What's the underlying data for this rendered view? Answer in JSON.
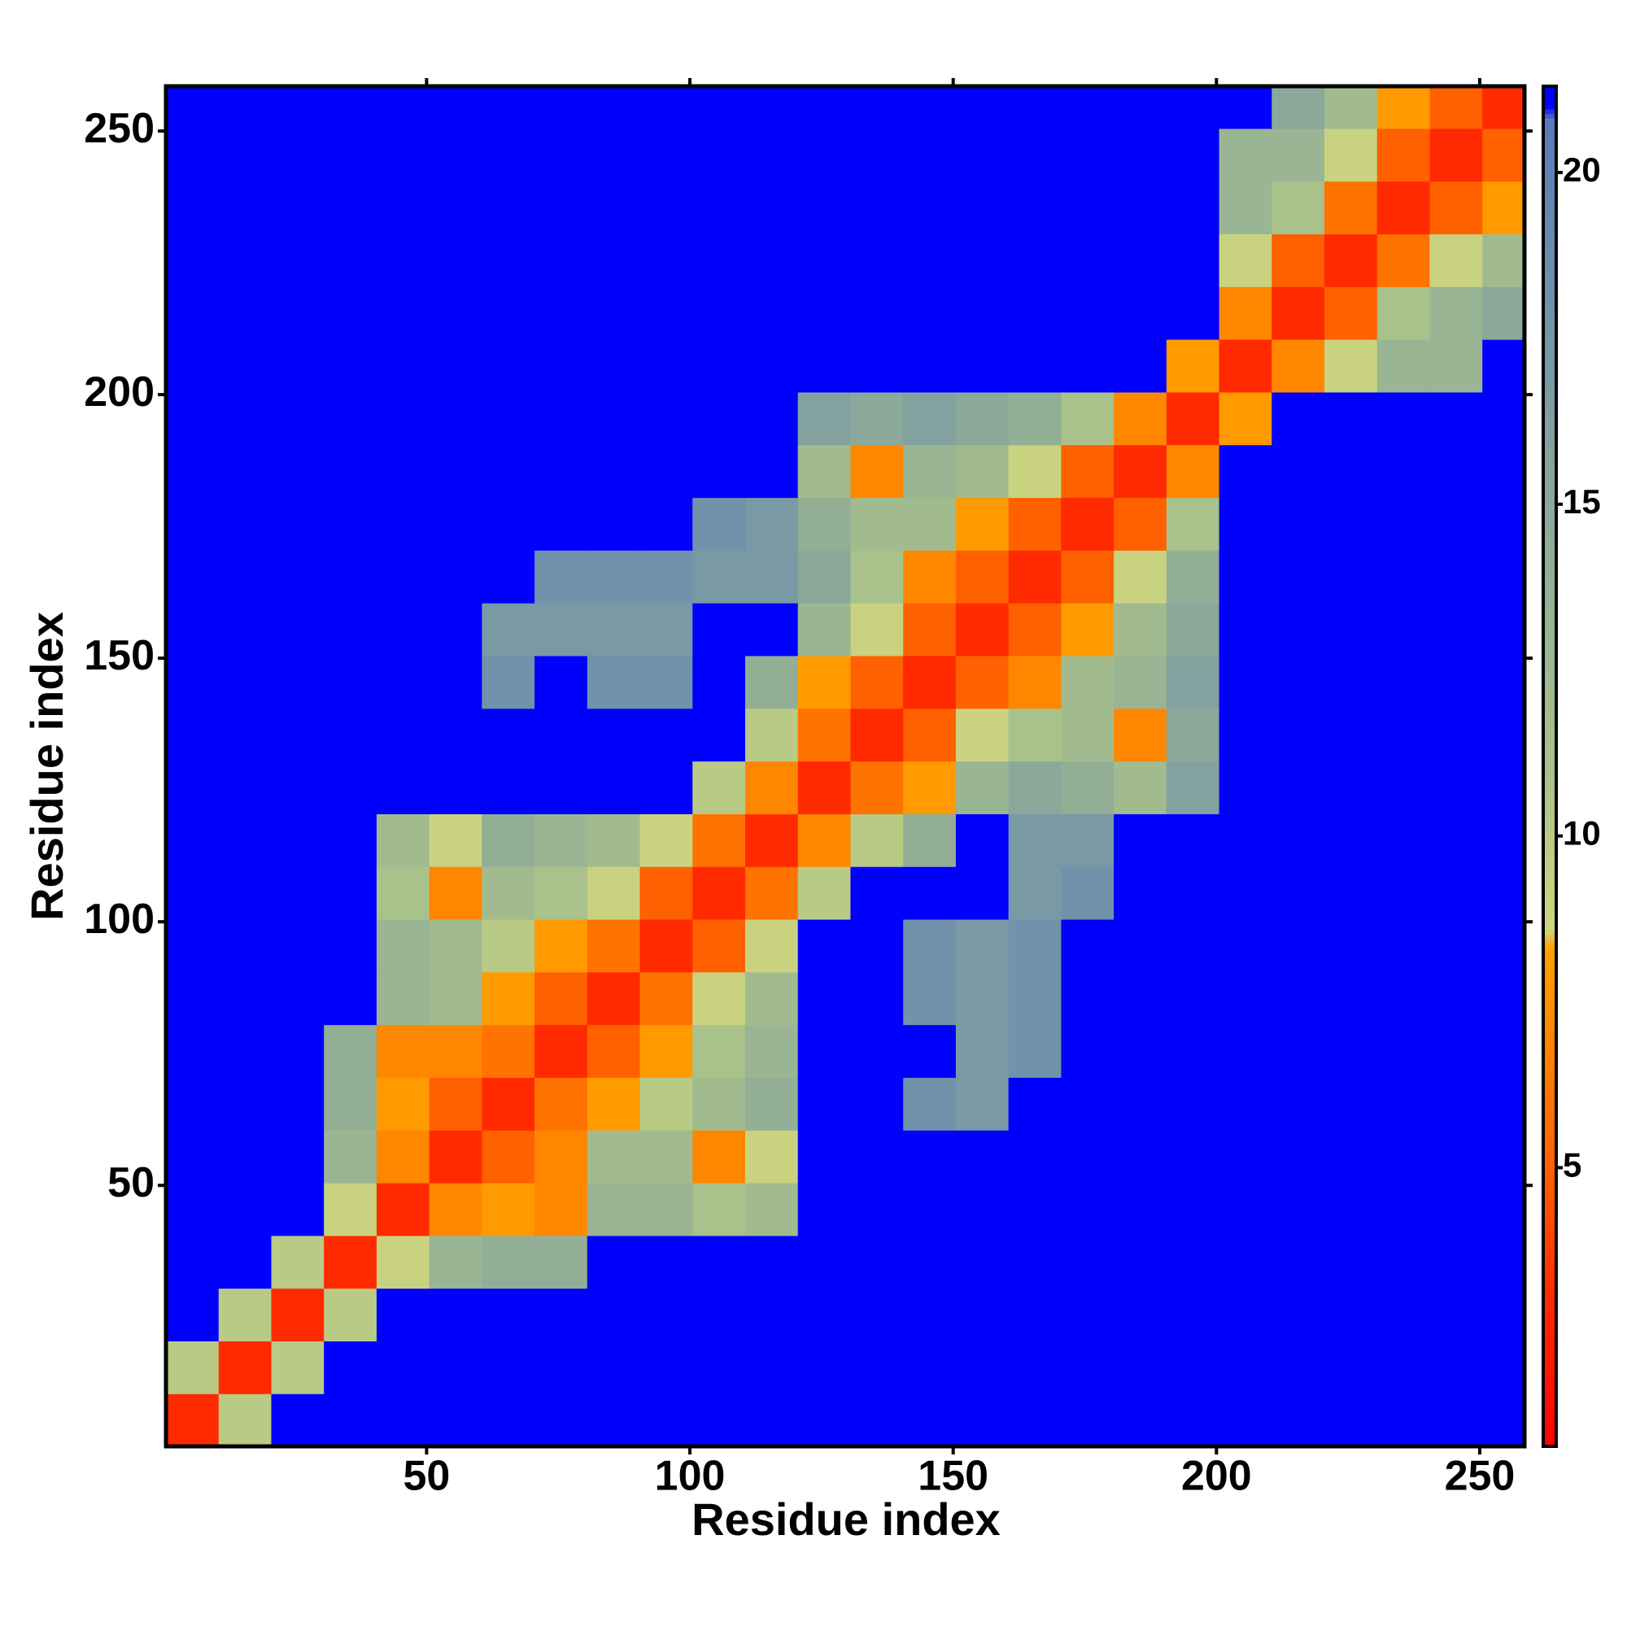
{
  "chart_data": {
    "type": "heatmap",
    "xlabel": "Residue index",
    "ylabel": "Residue index",
    "xlim": [
      0.5,
      258.5
    ],
    "ylim": [
      0.5,
      258.5
    ],
    "xticks": [
      50,
      100,
      150,
      200,
      250
    ],
    "yticks": [
      50,
      100,
      150,
      200,
      250
    ],
    "xbins": [
      0.5,
      10.5,
      20.5,
      30.5,
      40.5,
      50.5,
      60.5,
      70.5,
      80.5,
      90.5,
      100.5,
      110.5,
      120.5,
      130.5,
      140.5,
      150.5,
      160.5,
      170.5,
      180.5,
      190.5,
      200.5,
      210.5,
      220.5,
      230.5,
      240.5,
      250.5,
      258.5
    ],
    "ybins": [
      0.5,
      10.5,
      20.5,
      30.5,
      40.5,
      50.5,
      60.5,
      70.5,
      80.5,
      90.5,
      100.5,
      110.5,
      120.5,
      130.5,
      140.5,
      150.5,
      160.5,
      170.5,
      180.5,
      190.5,
      200.5,
      210.5,
      220.5,
      230.5,
      240.5,
      250.5,
      258.5
    ],
    "clim": [
      0.8,
      21.3
    ],
    "cticks": [
      5,
      10,
      15,
      20
    ],
    "colorscale": [
      [
        0.8,
        "#ff0000"
      ],
      [
        3,
        "#ff2a00"
      ],
      [
        5,
        "#ff6000"
      ],
      [
        8.3,
        "#ffa000"
      ],
      [
        8.6,
        "#cfd67c"
      ],
      [
        11,
        "#a9c18b"
      ],
      [
        15,
        "#8aa99a"
      ],
      [
        20.8,
        "#5a7cb8"
      ],
      [
        21,
        "#0000ff"
      ],
      [
        21.3,
        "#0000ff"
      ]
    ],
    "z": [
      [
        3,
        10,
        21,
        21,
        21,
        21,
        21,
        21,
        21,
        21,
        21,
        21,
        21,
        21,
        21,
        21,
        21,
        21,
        21,
        21,
        21,
        21,
        21,
        21,
        21,
        21
      ],
      [
        10,
        3,
        10,
        21,
        21,
        21,
        21,
        21,
        21,
        21,
        21,
        21,
        21,
        21,
        21,
        21,
        21,
        21,
        21,
        21,
        21,
        21,
        21,
        21,
        21,
        21
      ],
      [
        21,
        10,
        3,
        10,
        21,
        21,
        21,
        21,
        21,
        21,
        21,
        21,
        21,
        21,
        21,
        21,
        21,
        21,
        21,
        21,
        21,
        21,
        21,
        21,
        21,
        21
      ],
      [
        21,
        21,
        10,
        3,
        9,
        13,
        14,
        14,
        21,
        21,
        21,
        21,
        21,
        21,
        21,
        21,
        21,
        21,
        21,
        21,
        21,
        21,
        21,
        21,
        21,
        21
      ],
      [
        21,
        21,
        21,
        9,
        3,
        7,
        8,
        7,
        13,
        13,
        11,
        12,
        21,
        21,
        21,
        21,
        21,
        21,
        21,
        21,
        21,
        21,
        21,
        21,
        21,
        21
      ],
      [
        21,
        21,
        21,
        13,
        7,
        3,
        5,
        7,
        12,
        12,
        7,
        9,
        21,
        21,
        21,
        21,
        21,
        21,
        21,
        21,
        21,
        21,
        21,
        21,
        21,
        21
      ],
      [
        21,
        21,
        21,
        14,
        8,
        5,
        3,
        6,
        8,
        10,
        12,
        14,
        21,
        21,
        18,
        17,
        21,
        21,
        21,
        21,
        21,
        21,
        21,
        21,
        21,
        21
      ],
      [
        21,
        21,
        21,
        14,
        7,
        7,
        6,
        3,
        5,
        8,
        11,
        13,
        21,
        21,
        21,
        17,
        18,
        21,
        21,
        21,
        21,
        21,
        21,
        21,
        21,
        21
      ],
      [
        21,
        21,
        21,
        21,
        13,
        12,
        8,
        5,
        3,
        6,
        9,
        12,
        21,
        21,
        18,
        17,
        18,
        21,
        21,
        21,
        21,
        21,
        21,
        21,
        21,
        21
      ],
      [
        21,
        21,
        21,
        21,
        13,
        12,
        10,
        8,
        6,
        3,
        5,
        9,
        21,
        21,
        18,
        17,
        18,
        21,
        21,
        21,
        21,
        21,
        21,
        21,
        21,
        21
      ],
      [
        21,
        21,
        21,
        21,
        11,
        7,
        12,
        11,
        9,
        5,
        3,
        6,
        10,
        21,
        21,
        21,
        17,
        18,
        21,
        21,
        21,
        21,
        21,
        21,
        21,
        21
      ],
      [
        21,
        21,
        21,
        21,
        12,
        9,
        14,
        13,
        12,
        9,
        6,
        3,
        7,
        10,
        14,
        21,
        17,
        17,
        21,
        21,
        21,
        21,
        21,
        21,
        21,
        21
      ],
      [
        21,
        21,
        21,
        21,
        21,
        21,
        21,
        21,
        21,
        21,
        10,
        7,
        3,
        6,
        8,
        13,
        15,
        14,
        12,
        16,
        21,
        21,
        21,
        21,
        21,
        21
      ],
      [
        21,
        21,
        21,
        21,
        21,
        21,
        21,
        21,
        21,
        21,
        21,
        10,
        6,
        3,
        5,
        9,
        11,
        12,
        7,
        15,
        21,
        21,
        21,
        21,
        21,
        21
      ],
      [
        21,
        21,
        21,
        21,
        21,
        21,
        18,
        21,
        18,
        18,
        21,
        14,
        8,
        5,
        3,
        5,
        7,
        12,
        13,
        16,
        21,
        21,
        21,
        21,
        21,
        21
      ],
      [
        21,
        21,
        21,
        21,
        21,
        21,
        17,
        17,
        17,
        17,
        21,
        21,
        13,
        9,
        5,
        3,
        5,
        8,
        12,
        15,
        21,
        21,
        21,
        21,
        21,
        21
      ],
      [
        21,
        21,
        21,
        21,
        21,
        21,
        21,
        18,
        18,
        18,
        17,
        17,
        15,
        11,
        7,
        5,
        3,
        5,
        9,
        14,
        21,
        21,
        21,
        21,
        21,
        21
      ],
      [
        21,
        21,
        21,
        21,
        21,
        21,
        21,
        21,
        21,
        21,
        18,
        17,
        14,
        12,
        12,
        8,
        5,
        3,
        5,
        11,
        21,
        21,
        21,
        21,
        21,
        21
      ],
      [
        21,
        21,
        21,
        21,
        21,
        21,
        21,
        21,
        21,
        21,
        21,
        21,
        12,
        7,
        13,
        12,
        9,
        5,
        3,
        7,
        21,
        21,
        21,
        21,
        21,
        21
      ],
      [
        21,
        21,
        21,
        21,
        21,
        21,
        21,
        21,
        21,
        21,
        21,
        21,
        16,
        15,
        16,
        15,
        14,
        11,
        7,
        3,
        8,
        21,
        21,
        21,
        21,
        21
      ],
      [
        21,
        21,
        21,
        21,
        21,
        21,
        21,
        21,
        21,
        21,
        21,
        21,
        21,
        21,
        21,
        21,
        21,
        21,
        21,
        8,
        3,
        7,
        9,
        13,
        13,
        21
      ],
      [
        21,
        21,
        21,
        21,
        21,
        21,
        21,
        21,
        21,
        21,
        21,
        21,
        21,
        21,
        21,
        21,
        21,
        21,
        21,
        21,
        7,
        3,
        5,
        11,
        13,
        15
      ],
      [
        21,
        21,
        21,
        21,
        21,
        21,
        21,
        21,
        21,
        21,
        21,
        21,
        21,
        21,
        21,
        21,
        21,
        21,
        21,
        21,
        9,
        5,
        3,
        6,
        9,
        12
      ],
      [
        21,
        21,
        21,
        21,
        21,
        21,
        21,
        21,
        21,
        21,
        21,
        21,
        21,
        21,
        21,
        21,
        21,
        21,
        21,
        21,
        13,
        11,
        6,
        3,
        5,
        8
      ],
      [
        21,
        21,
        21,
        21,
        21,
        21,
        21,
        21,
        21,
        21,
        21,
        21,
        21,
        21,
        21,
        21,
        21,
        21,
        21,
        21,
        13,
        13,
        9,
        5,
        3,
        5
      ],
      [
        21,
        21,
        21,
        21,
        21,
        21,
        21,
        21,
        21,
        21,
        21,
        21,
        21,
        21,
        21,
        21,
        21,
        21,
        21,
        21,
        21,
        15,
        12,
        8,
        5,
        3
      ]
    ]
  }
}
